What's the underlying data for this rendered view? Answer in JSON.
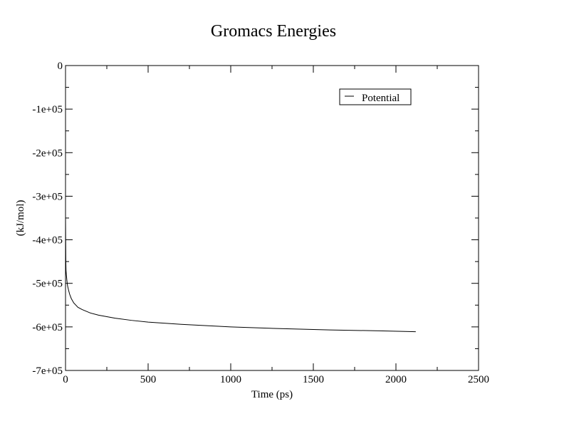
{
  "chart_data": {
    "type": "line",
    "title": "Gromacs Energies",
    "xlabel": "Time (ps)",
    "ylabel": "(kJ/mol)",
    "xlim": [
      0,
      2500
    ],
    "ylim": [
      -700000,
      0
    ],
    "x_ticks": [
      0,
      500,
      1000,
      1500,
      2000,
      2500
    ],
    "x_tick_labels": [
      "0",
      "500",
      "1000",
      "1500",
      "2000",
      "2500"
    ],
    "y_ticks": [
      0,
      -100000,
      -200000,
      -300000,
      -400000,
      -500000,
      -600000,
      -700000
    ],
    "y_tick_labels": [
      "0",
      "-1e+05",
      "-2e+05",
      "-3e+05",
      "-4e+05",
      "-5e+05",
      "-6e+05",
      "-7e+05"
    ],
    "grid": false,
    "legend_position": "top-right",
    "series": [
      {
        "name": "Potential",
        "color": "#000000",
        "x": [
          0,
          1,
          2,
          3,
          5,
          8,
          12,
          18,
          25,
          35,
          50,
          75,
          100,
          150,
          200,
          300,
          400,
          500,
          700,
          1000,
          1300,
          1600,
          1900,
          2120
        ],
        "y": [
          -345000,
          -400000,
          -450000,
          -470000,
          -480000,
          -492000,
          -505000,
          -515000,
          -525000,
          -535000,
          -545000,
          -555000,
          -560000,
          -568000,
          -573000,
          -580000,
          -585000,
          -589000,
          -594000,
          -600000,
          -604000,
          -607000,
          -609000,
          -611000
        ]
      }
    ]
  }
}
